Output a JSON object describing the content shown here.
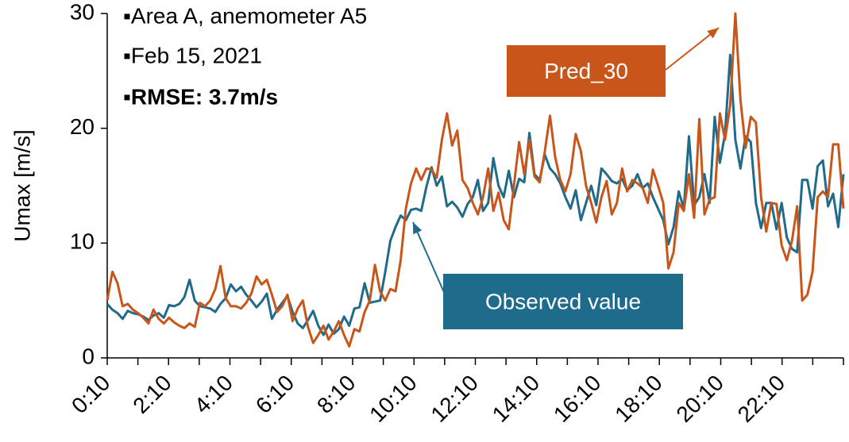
{
  "chart_data": {
    "type": "line",
    "y_label": "Umax [m/s]",
    "annotations": [
      "▪Area A, anemometer A5",
      "▪Feb 15, 2021",
      "▪RMSE: 3.7m/s"
    ],
    "categories": [
      "0:10",
      null,
      null,
      null,
      null,
      null,
      null,
      null,
      null,
      null,
      null,
      null,
      "2:10",
      null,
      null,
      null,
      null,
      null,
      null,
      null,
      null,
      null,
      null,
      null,
      "4:10",
      null,
      null,
      null,
      null,
      null,
      null,
      null,
      null,
      null,
      null,
      null,
      "6:10",
      null,
      null,
      null,
      null,
      null,
      null,
      null,
      null,
      null,
      null,
      null,
      "8:10",
      null,
      null,
      null,
      null,
      null,
      null,
      null,
      null,
      null,
      null,
      null,
      "10:10",
      null,
      null,
      null,
      null,
      null,
      null,
      null,
      null,
      null,
      null,
      null,
      "12:10",
      null,
      null,
      null,
      null,
      null,
      null,
      null,
      null,
      null,
      null,
      null,
      "14:10",
      null,
      null,
      null,
      null,
      null,
      null,
      null,
      null,
      null,
      null,
      null,
      "16:10",
      null,
      null,
      null,
      null,
      null,
      null,
      null,
      null,
      null,
      null,
      null,
      "18:10",
      null,
      null,
      null,
      null,
      null,
      null,
      null,
      null,
      null,
      null,
      null,
      "20:10",
      null,
      null,
      null,
      null,
      null,
      null,
      null,
      null,
      null,
      null,
      null,
      "22:10",
      null,
      null,
      null,
      null,
      null,
      null,
      null,
      null,
      null,
      null,
      null
    ],
    "series": [
      {
        "name": "Observed value",
        "color": "#1f6b8c",
        "values": [
          4.7,
          4.2,
          3.9,
          3.4,
          4.1,
          3.9,
          3.8,
          3.6,
          3.3,
          3.7,
          3.9,
          3.5,
          4.6,
          4.5,
          4.7,
          5.3,
          6.8,
          5.0,
          4.5,
          4.4,
          4.3,
          4.0,
          4.7,
          5.2,
          6.4,
          5.8,
          6.2,
          5.5,
          5.0,
          4.4,
          4.9,
          5.6,
          3.4,
          4.2,
          4.8,
          5.4,
          4.0,
          3.0,
          2.6,
          3.3,
          4.1,
          2.8,
          2.0,
          2.9,
          2.1,
          2.5,
          3.6,
          2.8,
          4.3,
          4.4,
          6.5,
          4.8,
          4.9,
          5.0,
          7.5,
          10.2,
          11.4,
          12.4,
          12.0,
          12.9,
          13.0,
          12.8,
          14.9,
          16.6,
          15.0,
          15.8,
          13.2,
          13.6,
          13.1,
          12.3,
          13.4,
          14.0,
          15.5,
          12.8,
          13.5,
          17.4,
          15.0,
          14.0,
          16.3,
          14.0,
          15.6,
          15.3,
          19.6,
          16.0,
          15.5,
          17.7,
          16.5,
          16.0,
          15.2,
          14.0,
          13.0,
          14.6,
          12.0,
          13.5,
          15.0,
          13.3,
          16.5,
          16.0,
          15.4,
          15.2,
          15.6,
          14.6,
          15.0,
          16.0,
          14.8,
          15.2,
          14.0,
          13.0,
          12.0,
          9.9,
          11.4,
          14.5,
          13.0,
          19.3,
          13.3,
          14.0,
          16.0,
          13.5,
          21.0,
          17.0,
          19.5,
          26.4,
          19.0,
          16.5,
          19.3,
          18.8,
          13.5,
          11.3,
          13.5,
          13.5,
          11.2,
          13.5,
          10.5,
          9.5,
          9.2,
          15.5,
          15.5,
          13.0,
          16.7,
          17.2,
          13.2,
          14.3,
          11.4,
          16.0
        ]
      },
      {
        "name": "Pred_30",
        "color": "#c8561b",
        "values": [
          5.0,
          7.5,
          6.5,
          4.5,
          4.7,
          4.2,
          3.9,
          3.5,
          3.0,
          4.2,
          3.4,
          3.0,
          3.5,
          3.1,
          2.8,
          2.6,
          3.0,
          2.7,
          4.8,
          4.5,
          5.0,
          6.0,
          8.0,
          5.2,
          4.5,
          4.5,
          4.3,
          4.8,
          5.6,
          7.1,
          6.4,
          6.8,
          5.5,
          4.0,
          4.5,
          5.5,
          3.2,
          4.3,
          5.0,
          2.7,
          1.3,
          2.0,
          2.8,
          1.6,
          2.3,
          3.2,
          2.0,
          1.0,
          2.5,
          2.3,
          4.0,
          5.0,
          8.1,
          5.8,
          5.0,
          6.0,
          5.8,
          8.5,
          13.0,
          15.2,
          16.5,
          15.5,
          16.5,
          16.4,
          15.7,
          19.0,
          21.3,
          18.5,
          19.8,
          15.5,
          14.8,
          13.5,
          12.5,
          14.0,
          16.5,
          12.8,
          14.4,
          12.0,
          11.2,
          15.0,
          18.8,
          16.0,
          19.0,
          15.8,
          15.3,
          18.0,
          21.1,
          17.5,
          15.5,
          14.5,
          16.0,
          19.5,
          18.0,
          15.0,
          13.5,
          11.8,
          14.0,
          15.4,
          12.5,
          13.5,
          16.5,
          14.5,
          15.5,
          15.2,
          14.8,
          13.5,
          16.4,
          15.0,
          13.5,
          7.8,
          9.2,
          13.5,
          12.8,
          16.0,
          12.2,
          20.8,
          12.5,
          13.8,
          14.0,
          21.3,
          19.0,
          22.0,
          30.0,
          22.5,
          18.3,
          21.0,
          20.5,
          14.0,
          11.0,
          13.5,
          13.4,
          9.8,
          8.5,
          10.2,
          13.2,
          5.0,
          5.5,
          7.5,
          14.0,
          14.5,
          14.0,
          18.6,
          18.6,
          13.0
        ]
      }
    ],
    "ylim": [
      0,
      30
    ],
    "yticks": [
      0,
      10,
      20,
      30
    ],
    "grid": false
  }
}
